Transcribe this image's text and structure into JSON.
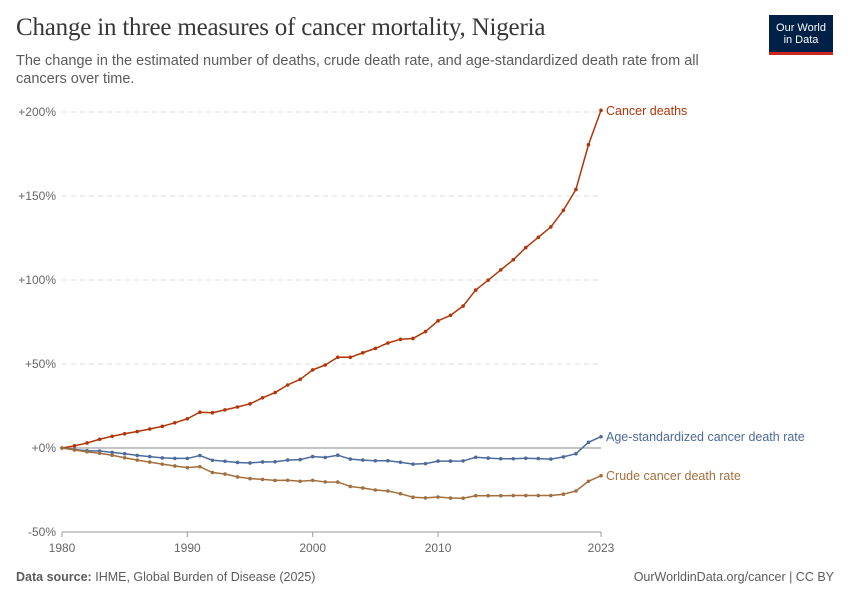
{
  "header": {
    "title": "Change in three measures of cancer mortality, Nigeria",
    "subtitle": "The change in the estimated number of deaths, crude death rate, and age-standardized death rate from all cancers over time."
  },
  "logo": {
    "line1": "Our World",
    "line2": "in Data"
  },
  "footer": {
    "source_label": "Data source:",
    "source_text": "IHME, Global Burden of Disease (2025)",
    "credit": "OurWorldinData.org/cancer | CC BY"
  },
  "chart_data": {
    "type": "line",
    "x": [
      1980,
      1981,
      1982,
      1983,
      1984,
      1985,
      1986,
      1987,
      1988,
      1989,
      1990,
      1991,
      1992,
      1993,
      1994,
      1995,
      1996,
      1997,
      1998,
      1999,
      2000,
      2001,
      2002,
      2003,
      2004,
      2005,
      2006,
      2007,
      2008,
      2009,
      2010,
      2011,
      2012,
      2013,
      2014,
      2015,
      2016,
      2017,
      2018,
      2019,
      2020,
      2021,
      2022,
      2023
    ],
    "series": [
      {
        "name": "Cancer deaths",
        "color": "#b13507",
        "values": [
          0,
          1.3,
          3,
          5.2,
          7,
          8.5,
          9.8,
          11.3,
          12.9,
          15,
          17.4,
          21.3,
          21,
          22.7,
          24.4,
          26.3,
          29.9,
          33,
          37.5,
          40.9,
          46.5,
          49.4,
          54,
          54,
          56.7,
          59.3,
          62.5,
          64.7,
          65.2,
          69.3,
          75.7,
          79,
          84.5,
          94,
          99.9,
          106,
          112,
          119.3,
          125.4,
          131.6,
          141.5,
          153.9,
          180.5,
          201
        ]
      },
      {
        "name": "Age-standardized cancer death rate",
        "color": "#4c6a9c",
        "values": [
          0,
          -1,
          -1.6,
          -1.8,
          -2.6,
          -3.4,
          -4.4,
          -5.1,
          -5.9,
          -6.2,
          -6.2,
          -4.5,
          -7.3,
          -7.9,
          -8.6,
          -8.9,
          -8.3,
          -8.2,
          -7.2,
          -6.9,
          -5.1,
          -5.6,
          -4.3,
          -6.6,
          -7.2,
          -7.6,
          -7.6,
          -8.5,
          -9.6,
          -9.3,
          -7.8,
          -7.8,
          -7.7,
          -5.5,
          -6,
          -6.4,
          -6.4,
          -6.1,
          -6.3,
          -6.6,
          -5.3,
          -3.4,
          3.4,
          6.7
        ]
      },
      {
        "name": "Crude cancer death rate",
        "color": "#a2703e",
        "values": [
          0,
          -1.2,
          -2.3,
          -3.1,
          -4.3,
          -5.8,
          -7.2,
          -8.4,
          -9.6,
          -10.7,
          -11.7,
          -11.1,
          -14.6,
          -15.5,
          -17.2,
          -18.2,
          -18.7,
          -19.3,
          -19.2,
          -19.8,
          -19.3,
          -20.2,
          -20.3,
          -22.9,
          -23.8,
          -25,
          -25.6,
          -27.2,
          -29.3,
          -29.7,
          -29.2,
          -29.8,
          -29.9,
          -28.4,
          -28.4,
          -28.4,
          -28.3,
          -28.3,
          -28.3,
          -28.3,
          -27.5,
          -25.6,
          -19.8,
          -16.5
        ]
      }
    ],
    "y_ticks": [
      "+200%",
      "+150%",
      "+100%",
      "+50%",
      "+0%",
      "-50%"
    ],
    "y_tick_values": [
      200,
      150,
      100,
      50,
      0,
      -50
    ],
    "x_ticks": [
      "1980",
      "1990",
      "2000",
      "2010",
      "2023"
    ],
    "x_tick_values": [
      1980,
      1990,
      2000,
      2010,
      2023
    ],
    "ylim": [
      -50,
      200
    ],
    "xlim": [
      1980,
      2023
    ],
    "grid": "horizontal dashed"
  }
}
